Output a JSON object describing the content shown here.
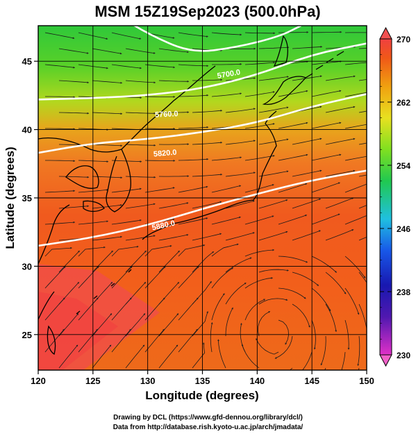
{
  "title": "MSM 15Z19Sep2023 (500.0hPa)",
  "xlabel": "Longitude (degrees)",
  "ylabel": "Latitude  (degrees)",
  "x_ticks": [
    "120",
    "125",
    "130",
    "135",
    "140",
    "145",
    "150"
  ],
  "y_ticks": [
    "25",
    "30",
    "35",
    "40",
    "45"
  ],
  "colorbar": {
    "ticks": [
      "270",
      "262",
      "254",
      "246",
      "238",
      "230"
    ],
    "min": 230,
    "max": 270,
    "colors": [
      "#e030c8",
      "#2010a0",
      "#1840e0",
      "#20c8e0",
      "#20c850",
      "#80e020",
      "#e8e020",
      "#f0a010",
      "#f05010",
      "#f04040"
    ]
  },
  "contour_labels": [
    "5880.0",
    "5820.0",
    "5760.0",
    "5700.0"
  ],
  "credits": {
    "line1": "Drawing by DCL (https://www.gfd-dennou.org/library/dcl/)",
    "line2": "Data from http://database.rish.kyoto-u.ac.jp/arch/jmadata/"
  },
  "chart_data": {
    "type": "heatmap",
    "title": "MSM 15Z19Sep2023 (500.0hPa)",
    "xlabel": "Longitude (degrees)",
    "ylabel": "Latitude  (degrees)",
    "xlim": [
      120,
      150
    ],
    "ylim": [
      22.4,
      47.6
    ],
    "x_ticks": [
      120,
      125,
      130,
      135,
      140,
      145,
      150
    ],
    "y_ticks": [
      25,
      30,
      35,
      40,
      45
    ],
    "grid": true,
    "colorbar_range": [
      230,
      270
    ],
    "contours": [
      {
        "label": "5880.0",
        "points": [
          [
            120,
            31.5
          ],
          [
            125,
            32.1
          ],
          [
            130,
            33.0
          ],
          [
            135,
            34.2
          ],
          [
            140,
            35.3
          ],
          [
            145,
            36.3
          ],
          [
            150,
            37.0
          ]
        ]
      },
      {
        "label": "5820.0",
        "points": [
          [
            120,
            38.3
          ],
          [
            125,
            39.0
          ],
          [
            130,
            39.3
          ],
          [
            135,
            39.8
          ],
          [
            140,
            40.5
          ],
          [
            145,
            41.7
          ],
          [
            150,
            42.6
          ]
        ]
      },
      {
        "label": "5760.0",
        "points": [
          [
            120,
            42.2
          ],
          [
            125,
            42.3
          ],
          [
            130,
            42.5
          ],
          [
            135,
            43.0
          ],
          [
            140,
            44.0
          ],
          [
            145,
            45.5
          ],
          [
            150,
            46.3
          ]
        ]
      },
      {
        "label": "5700.0",
        "points": [
          [
            127,
            48.5
          ],
          [
            130,
            47.0
          ],
          [
            134,
            45.6
          ],
          [
            138,
            46.0
          ],
          [
            142,
            46.8
          ],
          [
            144,
            47.6
          ]
        ]
      }
    ]
  }
}
